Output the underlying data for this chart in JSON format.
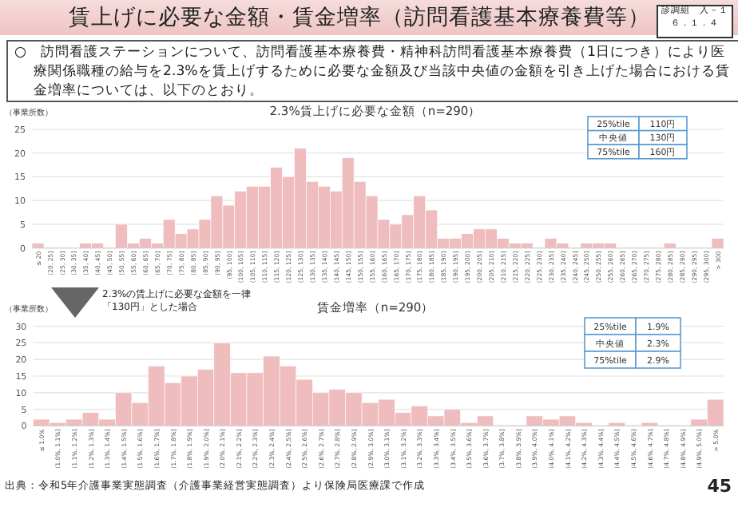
{
  "chart_data": [
    {
      "type": "other",
      "title": "賃上げに必要な金額・賃金増率（訪問看護基本療養費等）",
      "subtitle": "○　訪問看護ステーションについて、訪問看護基本療養費・精神科訪問看護基本療養費（1日につき）により医療関係職種の給与を2.3%を賃上げするために必要な金額及び当該中央値の金額を引き上げた場合における賃金増率については、以下のとおり。",
      "annotations": [
        "診調組　入－１",
        "６．１．４",
        "出典：令和5年介護事業実態調査（介護事業経営実態調査）より保険局医療課で作成",
        "45"
      ]
    },
    {
      "type": "bar",
      "title": "2.3%賃上げに必要な金額（n=290）",
      "ylabel": "（事業所数）",
      "color": "#efbdbd",
      "grid": "y",
      "ylim": [
        0,
        25
      ],
      "yticks": [
        0,
        5,
        10,
        15,
        20,
        25
      ],
      "categories": [
        "≤ 20",
        "(20, 25]",
        "(25, 30]",
        "(30, 35]",
        "(35, 40]",
        "(40, 45]",
        "(45, 50]",
        "(50, 55]",
        "(55, 60]",
        "(60, 65]",
        "(65, 70]",
        "(70, 75]",
        "(75, 80]",
        "(80, 85]",
        "(85, 90]",
        "(90, 95]",
        "(95, 100]",
        "(100, 105]",
        "(105, 110]",
        "(110, 115]",
        "(115, 120]",
        "(120, 125]",
        "(125, 130]",
        "(130, 135]",
        "(135, 140]",
        "(140, 145]",
        "(145, 150]",
        "(150, 155]",
        "(155, 160]",
        "(160, 165]",
        "(165, 170]",
        "(170, 175]",
        "(175, 180]",
        "(180, 185]",
        "(185, 190]",
        "(190, 195]",
        "(195, 200]",
        "(200, 205]",
        "(205, 210]",
        "(210, 215]",
        "(215, 220]",
        "(220, 225]",
        "(225, 230]",
        "(230, 235]",
        "(235, 240]",
        "(240, 245]",
        "(245, 250]",
        "(250, 255]",
        "(255, 260]",
        "(260, 265]",
        "(265, 270]",
        "(270, 275]",
        "(275, 280]",
        "(280, 285]",
        "(285, 290]",
        "(290, 295]",
        "(295, 300]",
        "> 300"
      ],
      "values": [
        1,
        0,
        0,
        0,
        1,
        1,
        0,
        5,
        1,
        2,
        1,
        6,
        3,
        4,
        6,
        11,
        9,
        12,
        13,
        13,
        17,
        15,
        21,
        14,
        13,
        12,
        19,
        14,
        11,
        6,
        5,
        7,
        11,
        8,
        2,
        2,
        3,
        4,
        4,
        2,
        1,
        1,
        0,
        2,
        1,
        0,
        1,
        1,
        1,
        0,
        0,
        0,
        0,
        1,
        0,
        0,
        0,
        2
      ],
      "annotations": [
        "25%tile",
        "110円",
        "中央値",
        "130円",
        "75%tile",
        "160円"
      ]
    },
    {
      "type": "bar",
      "title": "賃金増率（n=290）",
      "ylabel": "（事業所数）",
      "color": "#efbdbd",
      "grid": "y",
      "ylim": [
        0,
        30
      ],
      "yticks": [
        0,
        5,
        10,
        15,
        20,
        25,
        30
      ],
      "categories": [
        "≤ 1.0%",
        "(1.0%, 1.1%]",
        "(1.1%, 1.2%]",
        "(1.2%, 1.3%]",
        "(1.3%, 1.4%]",
        "(1.4%, 1.5%]",
        "(1.5%, 1.6%]",
        "(1.6%, 1.7%]",
        "(1.7%, 1.8%]",
        "(1.8%, 1.9%]",
        "(1.9%, 2.0%]",
        "(2.0%, 2.1%]",
        "(2.1%, 2.2%]",
        "(2.2%, 2.3%]",
        "(2.3%, 2.4%]",
        "(2.4%, 2.5%]",
        "(2.5%, 2.6%]",
        "(2.6%, 2.7%]",
        "(2.7%, 2.8%]",
        "(2.8%, 2.9%]",
        "(2.9%, 3.0%]",
        "(3.0%, 3.1%]",
        "(3.1%, 3.2%]",
        "(3.2%, 3.3%]",
        "(3.3%, 3.4%]",
        "(3.4%, 3.5%]",
        "(3.5%, 3.6%]",
        "(3.6%, 3.7%]",
        "(3.7%, 3.8%]",
        "(3.8%, 3.9%]",
        "(3.9%, 4.0%]",
        "(4.0%, 4.1%]",
        "(4.1%, 4.2%]",
        "(4.2%, 4.3%]",
        "(4.3%, 4.4%]",
        "(4.4%, 4.5%]",
        "(4.5%, 4.6%]",
        "(4.6%, 4.7%]",
        "(4.7%, 4.8%]",
        "(4.8%, 4.9%]",
        "(4.9%, 5.0%]",
        "> 5.0%"
      ],
      "values": [
        2,
        1,
        2,
        4,
        2,
        10,
        7,
        18,
        13,
        15,
        17,
        25,
        16,
        16,
        21,
        18,
        14,
        10,
        11,
        10,
        7,
        8,
        4,
        6,
        3,
        5,
        1,
        3,
        0,
        0,
        3,
        2,
        3,
        1,
        0,
        1,
        0,
        1,
        0,
        0,
        2,
        8
      ],
      "annotations": [
        "2.3%の賃上げに必要な金額を一律「130円」とした場合",
        "25%tile",
        "1.9%",
        "中央値",
        "2.3%",
        "75%tile",
        "2.9%"
      ]
    }
  ]
}
